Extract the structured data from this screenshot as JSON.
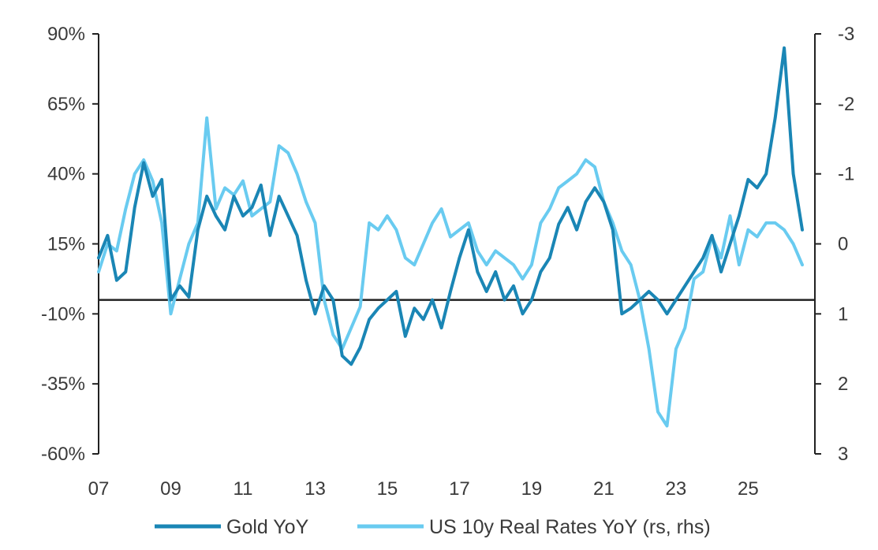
{
  "chart_data": {
    "type": "line",
    "title": "",
    "xlabel": "",
    "ylabel": "",
    "x_ticks": [
      "07",
      "09",
      "11",
      "13",
      "15",
      "17",
      "19",
      "21",
      "23",
      "25"
    ],
    "left_axis": {
      "ticks": [
        "90%",
        "65%",
        "40%",
        "15%",
        "-10%",
        "-35%",
        "-60%"
      ],
      "range": [
        -60,
        90
      ],
      "unit": "%"
    },
    "right_axis": {
      "ticks": [
        "-3",
        "-2",
        "-1",
        "0",
        "1",
        "2",
        "3"
      ],
      "range": [
        3,
        -3
      ],
      "inverted": true
    },
    "zero_line_left_value": -5,
    "series": [
      {
        "name": "Gold YoY",
        "axis": "left",
        "color": "#1a86b5",
        "x": [
          2007.0,
          2007.25,
          2007.5,
          2007.75,
          2008.0,
          2008.25,
          2008.5,
          2008.75,
          2009.0,
          2009.25,
          2009.5,
          2009.75,
          2010.0,
          2010.25,
          2010.5,
          2010.75,
          2011.0,
          2011.25,
          2011.5,
          2011.75,
          2012.0,
          2012.25,
          2012.5,
          2012.75,
          2013.0,
          2013.25,
          2013.5,
          2013.75,
          2014.0,
          2014.25,
          2014.5,
          2014.75,
          2015.0,
          2015.25,
          2015.5,
          2015.75,
          2016.0,
          2016.25,
          2016.5,
          2016.75,
          2017.0,
          2017.25,
          2017.5,
          2017.75,
          2018.0,
          2018.25,
          2018.5,
          2018.75,
          2019.0,
          2019.25,
          2019.5,
          2019.75,
          2020.0,
          2020.25,
          2020.5,
          2020.75,
          2021.0,
          2021.25,
          2021.5,
          2021.75,
          2022.0,
          2022.25,
          2022.5,
          2022.75,
          2023.0,
          2023.25,
          2023.5,
          2023.75,
          2024.0,
          2024.25,
          2024.5,
          2024.75,
          2025.0,
          2025.25,
          2025.5,
          2025.75,
          2026.0,
          2026.25,
          2026.5
        ],
        "y": [
          10,
          18,
          2,
          5,
          28,
          44,
          32,
          38,
          -5,
          0,
          -4,
          20,
          32,
          25,
          20,
          32,
          25,
          28,
          36,
          18,
          32,
          25,
          18,
          2,
          -10,
          0,
          -5,
          -25,
          -28,
          -22,
          -12,
          -8,
          -5,
          -2,
          -18,
          -8,
          -12,
          -5,
          -15,
          -2,
          10,
          20,
          5,
          -2,
          5,
          -5,
          0,
          -10,
          -5,
          5,
          10,
          22,
          28,
          20,
          30,
          35,
          30,
          20,
          -10,
          -8,
          -5,
          -2,
          -5,
          -10,
          -5,
          0,
          5,
          10,
          18,
          5,
          15,
          25,
          38,
          35,
          40,
          60,
          85,
          40,
          20
        ]
      },
      {
        "name": "US 10y Real Rates YoY (rs, rhs)",
        "axis": "right",
        "color": "#69cbf0",
        "x": [
          2007.0,
          2007.25,
          2007.5,
          2007.75,
          2008.0,
          2008.25,
          2008.5,
          2008.75,
          2009.0,
          2009.25,
          2009.5,
          2009.75,
          2010.0,
          2010.25,
          2010.5,
          2010.75,
          2011.0,
          2011.25,
          2011.5,
          2011.75,
          2012.0,
          2012.25,
          2012.5,
          2012.75,
          2013.0,
          2013.25,
          2013.5,
          2013.75,
          2014.0,
          2014.25,
          2014.5,
          2014.75,
          2015.0,
          2015.25,
          2015.5,
          2015.75,
          2016.0,
          2016.25,
          2016.5,
          2016.75,
          2017.0,
          2017.25,
          2017.5,
          2017.75,
          2018.0,
          2018.25,
          2018.5,
          2018.75,
          2019.0,
          2019.25,
          2019.5,
          2019.75,
          2020.0,
          2020.25,
          2020.5,
          2020.75,
          2021.0,
          2021.25,
          2021.5,
          2021.75,
          2022.0,
          2022.25,
          2022.5,
          2022.75,
          2023.0,
          2023.25,
          2023.5,
          2023.75,
          2024.0,
          2024.25,
          2024.5,
          2024.75,
          2025.0,
          2025.25,
          2025.5,
          2025.75,
          2026.0,
          2026.25,
          2026.5
        ],
        "y": [
          0.4,
          0.0,
          0.1,
          -0.5,
          -1.0,
          -1.2,
          -0.9,
          -0.3,
          1.0,
          0.5,
          0.0,
          -0.3,
          -1.8,
          -0.5,
          -0.8,
          -0.7,
          -0.9,
          -0.4,
          -0.5,
          -0.6,
          -1.4,
          -1.3,
          -1.0,
          -0.6,
          -0.3,
          0.8,
          1.3,
          1.5,
          1.2,
          0.9,
          -0.3,
          -0.2,
          -0.4,
          -0.2,
          0.2,
          0.3,
          0.0,
          -0.3,
          -0.5,
          -0.1,
          -0.2,
          -0.3,
          0.1,
          0.3,
          0.1,
          0.2,
          0.3,
          0.5,
          0.3,
          -0.3,
          -0.5,
          -0.8,
          -0.9,
          -1.0,
          -1.2,
          -1.1,
          -0.6,
          -0.3,
          0.1,
          0.3,
          0.8,
          1.5,
          2.4,
          2.6,
          1.5,
          1.2,
          0.5,
          0.4,
          -0.1,
          0.2,
          -0.4,
          0.3,
          -0.2,
          -0.1,
          -0.3,
          -0.3,
          -0.2,
          0.0,
          0.3
        ]
      }
    ]
  },
  "legend": {
    "items": [
      {
        "label": "Gold YoY",
        "color": "#1a86b5"
      },
      {
        "label": "US 10y Real Rates YoY (rs, rhs)",
        "color": "#69cbf0"
      }
    ]
  }
}
